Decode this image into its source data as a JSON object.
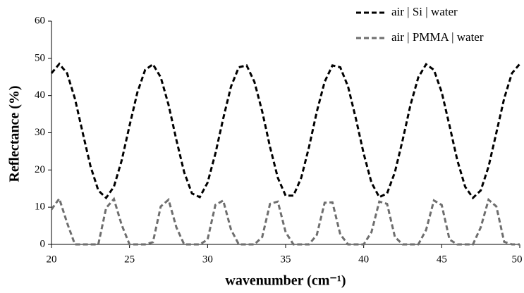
{
  "chart_data": {
    "type": "line",
    "xlabel": "wavenumber (cm⁻¹)",
    "ylabel": "Reflectance (%)",
    "x": [
      20,
      20.5,
      21,
      21.5,
      22,
      22.5,
      23,
      23.5,
      24,
      24.5,
      25,
      25.5,
      26,
      26.5,
      27,
      27.5,
      28,
      28.5,
      29,
      29.5,
      30,
      30.5,
      31,
      31.5,
      32,
      32.5,
      33,
      33.5,
      34,
      34.5,
      35,
      35.5,
      36,
      36.5,
      37,
      37.5,
      38,
      38.5,
      39,
      39.5,
      40,
      40.5,
      41,
      41.5,
      42,
      42.5,
      43,
      43.5,
      44,
      44.5,
      45,
      45.5,
      46,
      46.5,
      47,
      47.5,
      48,
      48.5,
      49,
      49.5,
      50
    ],
    "series": [
      {
        "name": "air | Si | water",
        "color": "#000000",
        "values": [
          46.0,
          48.5,
          46.0,
          39.2,
          30.0,
          21.0,
          14.5,
          12.5,
          15.5,
          22.6,
          31.9,
          40.8,
          46.9,
          48.4,
          44.9,
          37.5,
          28.1,
          19.4,
          13.7,
          12.7,
          16.6,
          24.4,
          33.8,
          42.4,
          47.6,
          48.1,
          43.7,
          35.7,
          26.2,
          17.9,
          13.1,
          13.1,
          17.9,
          26.2,
          35.7,
          43.7,
          48.1,
          47.6,
          42.4,
          33.8,
          24.4,
          16.6,
          12.7,
          13.7,
          19.4,
          28.1,
          37.5,
          44.9,
          48.4,
          46.9,
          40.9,
          31.9,
          22.6,
          15.5,
          12.5,
          14.5,
          20.9,
          30.0,
          39.2,
          46.0,
          48.5
        ]
      },
      {
        "name": "air | PMMA | water",
        "color": "#6e6e6e",
        "values": [
          9.4,
          12.3,
          5.8,
          0,
          0,
          0,
          0,
          9.8,
          12.2,
          5.2,
          0,
          0,
          0,
          0.6,
          10.2,
          12.0,
          4.6,
          0,
          0,
          0,
          1.3,
          10.6,
          11.8,
          4.0,
          0,
          0,
          0,
          2.0,
          10.9,
          11.5,
          3.3,
          0,
          0,
          0,
          2.6,
          11.2,
          11.3,
          2.7,
          0,
          0,
          0,
          3.3,
          11.5,
          10.9,
          2.0,
          0,
          0,
          0,
          3.9,
          11.8,
          10.6,
          1.3,
          0,
          0,
          0,
          4.6,
          12.0,
          10.2,
          0.7,
          0,
          0
        ]
      }
    ],
    "xlim": [
      20,
      50
    ],
    "xticks": [
      20,
      25,
      30,
      35,
      40,
      45,
      50
    ],
    "ylim": [
      0,
      60
    ],
    "yticks": [
      0,
      10,
      20,
      30,
      40,
      50,
      60
    ],
    "grid": false,
    "legend": "upper-right",
    "line_style": "dashed"
  }
}
